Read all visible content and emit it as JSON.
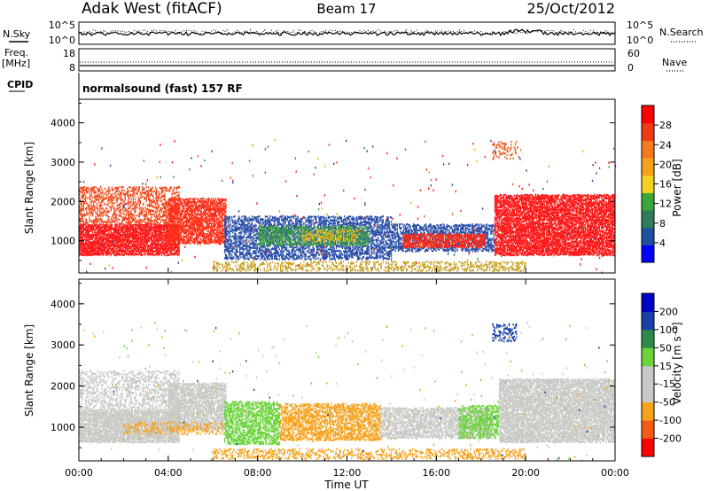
{
  "header": {
    "station": "Adak West (fitACF)",
    "beam": "Beam 17",
    "date": "25/Oct/2012"
  },
  "summary_panels": {
    "nsky_label": "N.Sky",
    "nsearch_label": "N.Search",
    "freq_label_1": "Freq.",
    "freq_label_2": "[MHz]",
    "nave_label": "Nave",
    "cpid_label": "CPID",
    "cpid_text": "normalsound (fast) 157 RF",
    "noise_ticks_left": [
      "10^5",
      "10^0"
    ],
    "noise_ticks_right": [
      "10^5",
      "10^0"
    ],
    "freq_ticks_left": [
      "18",
      "8"
    ],
    "nave_ticks_right": [
      "60",
      "0"
    ]
  },
  "chart_data": [
    {
      "type": "heatmap",
      "name": "power",
      "ylabel": "Slant Range [km]",
      "ylim": [
        180,
        4600
      ],
      "y_ticks": [
        "1000",
        "2000",
        "3000",
        "4000"
      ],
      "colorbar_label": "Power [dB]",
      "colorbar_ticks": [
        "28",
        "24",
        "20",
        "16",
        "12",
        "8",
        "4"
      ],
      "colorbar_colors": [
        "#0000ff",
        "#1f4fa0",
        "#2e7d5a",
        "#3aa63a",
        "#f2d21f",
        "#f7a21b",
        "#f57a1f",
        "#f03a14",
        "#ff0000"
      ],
      "regions": [
        {
          "t0": 0.0,
          "t1": 4.5,
          "r0": 650,
          "r1": 1450,
          "color": "#ff1a1a",
          "density": 0.85
        },
        {
          "t0": 0.0,
          "t1": 4.5,
          "r0": 1450,
          "r1": 2400,
          "color": "#f24a1c",
          "density": 0.4
        },
        {
          "t0": 4.0,
          "t1": 6.6,
          "r0": 950,
          "r1": 2100,
          "color": "#ff3019",
          "density": 0.75
        },
        {
          "t0": 6.5,
          "t1": 14.0,
          "r0": 550,
          "r1": 1650,
          "color": "#2a4fa8",
          "density": 0.55
        },
        {
          "t0": 8.0,
          "t1": 13.0,
          "r0": 900,
          "r1": 1400,
          "color": "#3c9a48",
          "density": 0.55
        },
        {
          "t0": 10.0,
          "t1": 12.5,
          "r0": 1000,
          "r1": 1300,
          "color": "#e8b71c",
          "density": 0.4
        },
        {
          "t0": 14.0,
          "t1": 18.6,
          "r0": 750,
          "r1": 1450,
          "color": "#2a4fa8",
          "density": 0.55
        },
        {
          "t0": 14.5,
          "t1": 18.2,
          "r0": 850,
          "r1": 1200,
          "color": "#ff2a16",
          "density": 0.7
        },
        {
          "t0": 18.6,
          "t1": 24.0,
          "r0": 650,
          "r1": 2200,
          "color": "#ff1a1a",
          "density": 0.8
        },
        {
          "t0": 18.5,
          "t1": 19.6,
          "r0": 3100,
          "r1": 3550,
          "color": "#e85a1a",
          "density": 0.3
        },
        {
          "t0": 6.0,
          "t1": 20.0,
          "r0": 250,
          "r1": 500,
          "color": "#c8a020",
          "density": 0.35
        }
      ]
    },
    {
      "type": "heatmap",
      "name": "velocity",
      "xlabel": "Time UT",
      "ylabel": "Slant Range [km]",
      "xlim": [
        0,
        24
      ],
      "x_ticks": [
        "00:00",
        "04:00",
        "08:00",
        "12:00",
        "16:00",
        "20:00",
        "00:00"
      ],
      "ylim": [
        180,
        4600
      ],
      "y_ticks": [
        "1000",
        "2000",
        "3000",
        "4000"
      ],
      "colorbar_label": "Velocity [m s⁻¹]",
      "colorbar_ticks": [
        "200",
        "100",
        "50",
        "15",
        "-15",
        "-50",
        "-100",
        "-200"
      ],
      "colorbar_colors": [
        "#ff0000",
        "#f45a14",
        "#f7a21b",
        "#c8c8c4",
        "#c8c8c4",
        "#6ad43a",
        "#2e8a4a",
        "#1a3fa8",
        "#0000c8"
      ],
      "regions": [
        {
          "t0": 0.0,
          "t1": 4.5,
          "r0": 650,
          "r1": 1450,
          "color": "#c8c8c4",
          "density": 0.85
        },
        {
          "t0": 0.0,
          "t1": 4.5,
          "r0": 1450,
          "r1": 2400,
          "color": "#c8c8c4",
          "density": 0.35
        },
        {
          "t0": 4.0,
          "t1": 6.6,
          "r0": 950,
          "r1": 2100,
          "color": "#c8c8c4",
          "density": 0.75
        },
        {
          "t0": 2.0,
          "t1": 6.5,
          "r0": 850,
          "r1": 1150,
          "color": "#f7a21b",
          "density": 0.3
        },
        {
          "t0": 6.5,
          "t1": 9.0,
          "r0": 600,
          "r1": 1650,
          "color": "#6ad43a",
          "density": 0.6
        },
        {
          "t0": 9.0,
          "t1": 13.5,
          "r0": 700,
          "r1": 1600,
          "color": "#f7a21b",
          "density": 0.6
        },
        {
          "t0": 13.5,
          "t1": 18.5,
          "r0": 750,
          "r1": 1500,
          "color": "#c8c8c4",
          "density": 0.65
        },
        {
          "t0": 17.0,
          "t1": 18.8,
          "r0": 750,
          "r1": 1550,
          "color": "#6ad43a",
          "density": 0.5
        },
        {
          "t0": 18.8,
          "t1": 24.0,
          "r0": 650,
          "r1": 2200,
          "color": "#c8c8c4",
          "density": 0.8
        },
        {
          "t0": 18.5,
          "t1": 19.6,
          "r0": 3100,
          "r1": 3550,
          "color": "#1a3fa8",
          "density": 0.35
        },
        {
          "t0": 6.0,
          "t1": 20.0,
          "r0": 250,
          "r1": 500,
          "color": "#f7a21b",
          "density": 0.35
        }
      ]
    }
  ]
}
